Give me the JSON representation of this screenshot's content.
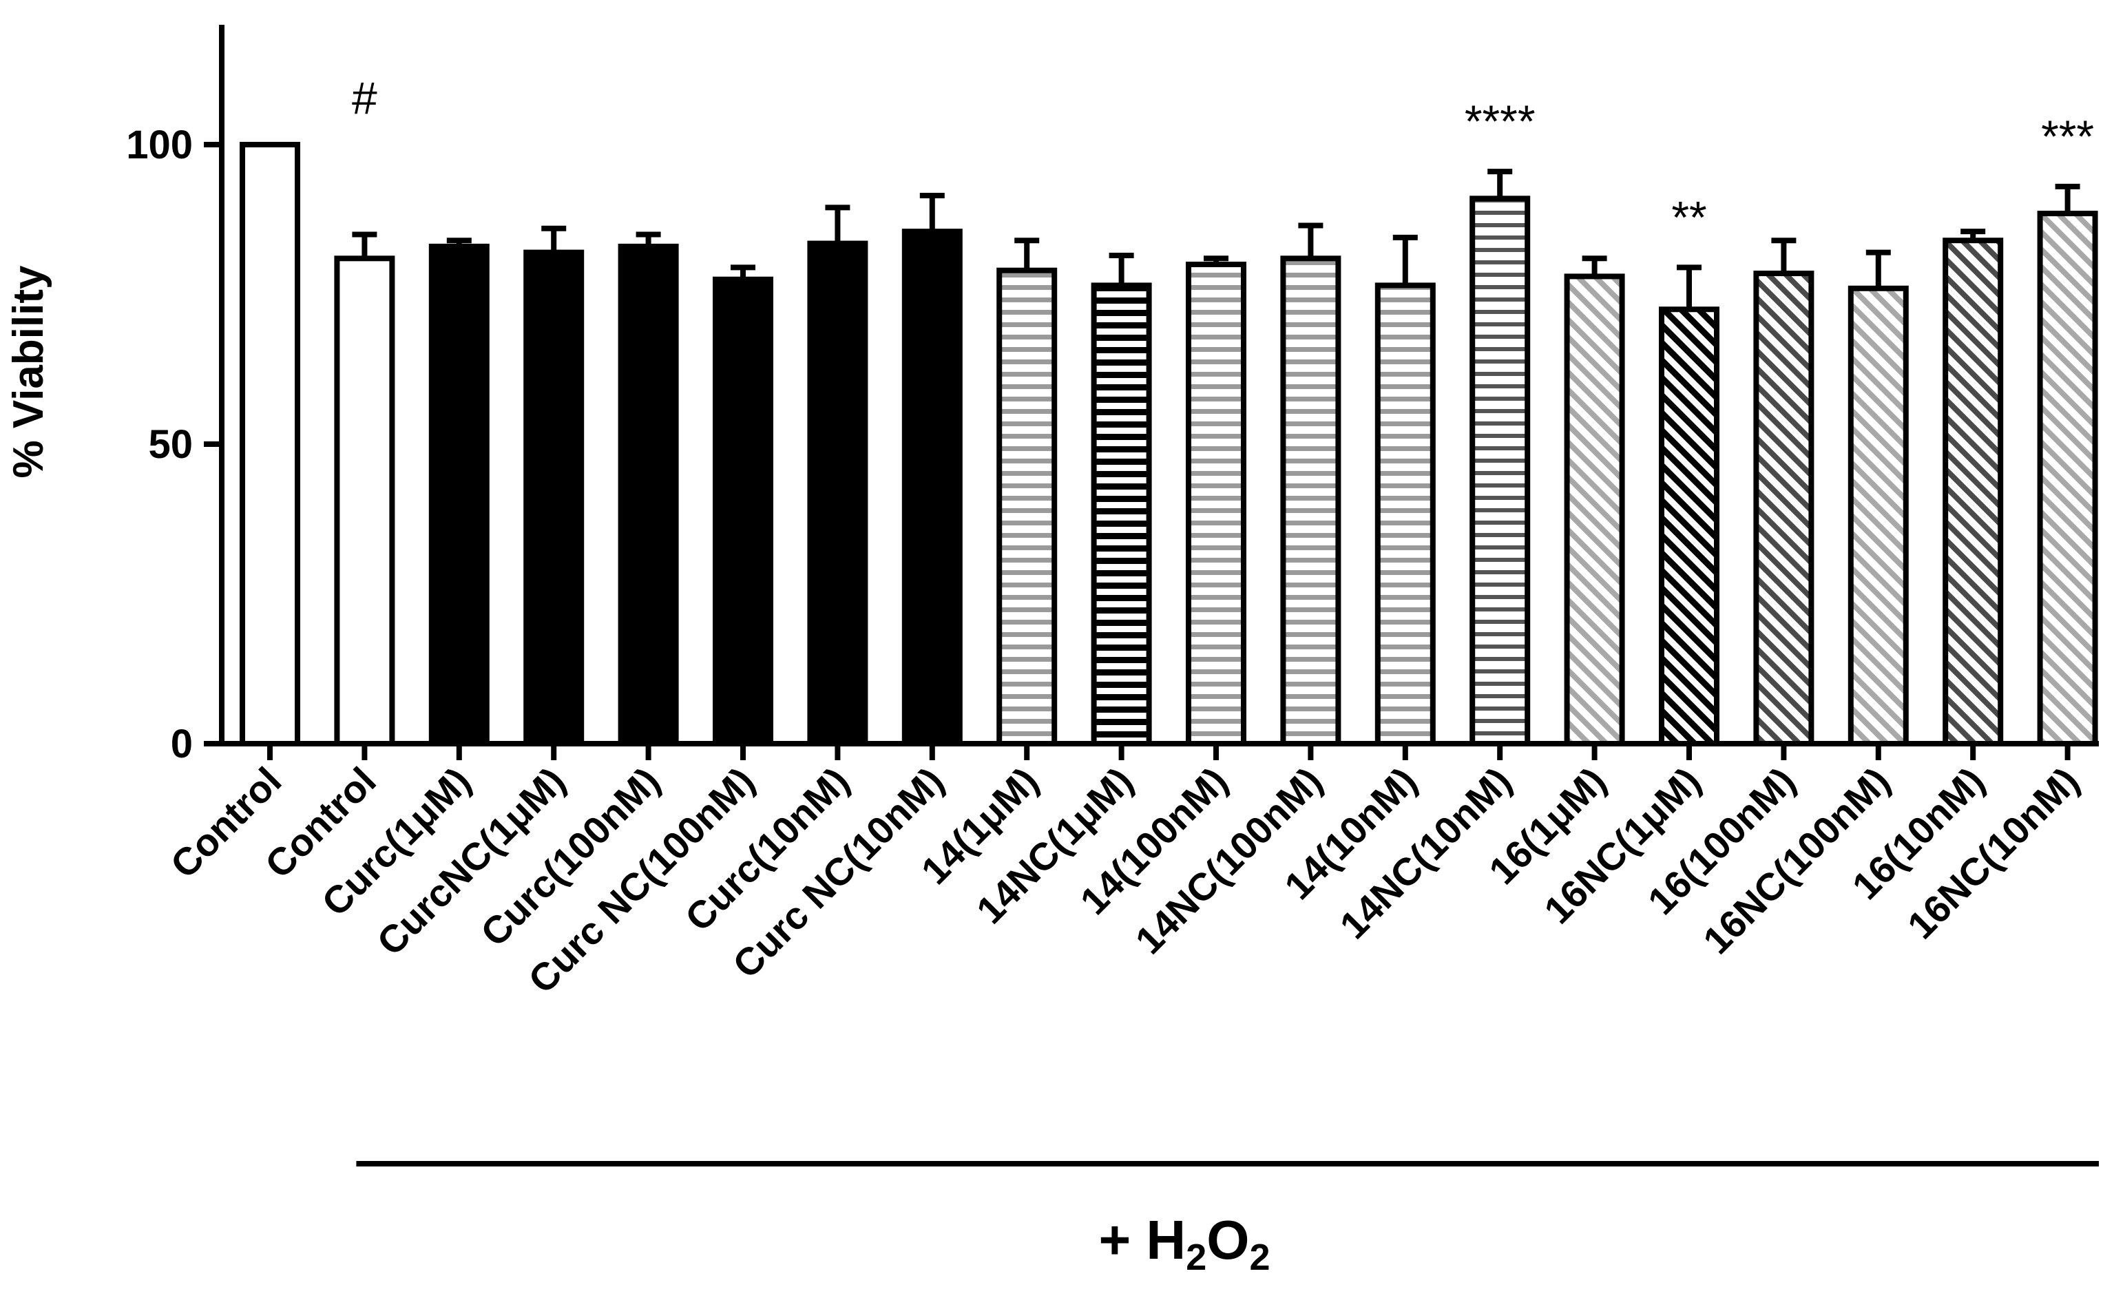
{
  "chart_data": {
    "type": "bar",
    "title": "",
    "xlabel": "",
    "ylabel": "% Viability",
    "ylim": [
      0,
      120
    ],
    "yticks": [
      0,
      50,
      100
    ],
    "grid": false,
    "legend": "none",
    "categories": [
      "Control",
      "Control",
      "Curc(1μM)",
      "CurcNC(1μM)",
      "Curc(100nM)",
      "Curc NC(100nM)",
      "Curc(10nM)",
      "Curc NC(10nM)",
      "14(1μM)",
      "14NC(1μM)",
      "14(100nM)",
      "14NC(100nM)",
      "14(10nM)",
      "14NC(10nM)",
      "16(1μM)",
      "16NC(1μM)",
      "16(100nM)",
      "16NC(100nM)",
      "16(10nM)",
      "16NC(10nM)"
    ],
    "values": [
      100,
      81,
      83,
      82,
      83,
      77.5,
      83.5,
      85.5,
      79,
      76.5,
      80,
      81,
      76.5,
      91,
      78,
      72.5,
      78.5,
      76,
      84,
      88.5
    ],
    "errors": [
      0,
      4,
      1,
      4,
      2,
      2,
      6,
      6,
      5,
      5,
      1,
      5.5,
      8,
      4.5,
      3,
      7,
      5.5,
      6,
      1.5,
      4.5
    ],
    "fills": [
      "white",
      "white",
      "black",
      "black",
      "black",
      "black",
      "black",
      "black",
      "hstripe-gray",
      "hstripe-black",
      "hstripe-gray",
      "hstripe-gray",
      "hstripe-gray",
      "hstripe-dark",
      "diag-gray",
      "diag-black",
      "diag-dark",
      "diag-gray",
      "diag-dark",
      "diag-gray"
    ],
    "annotations": [
      {
        "category_index": 1,
        "text": "#"
      },
      {
        "category_index": 13,
        "text": "****"
      },
      {
        "category_index": 15,
        "text": "**"
      },
      {
        "category_index": 19,
        "text": "***"
      }
    ],
    "group_label": {
      "main": "+ H",
      "sub1": "2",
      "mid": "O",
      "sub2": "2",
      "start_index": 1,
      "end_index": 19
    }
  }
}
